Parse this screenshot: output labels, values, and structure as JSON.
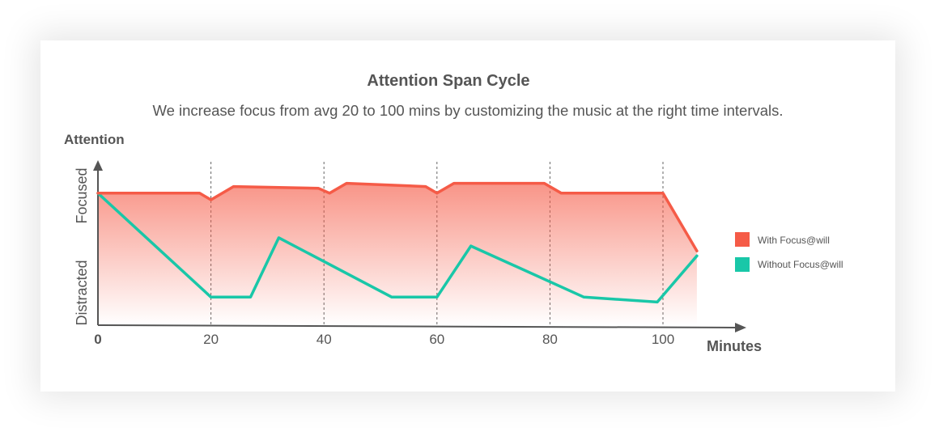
{
  "colors": {
    "with": "#f55b47",
    "without": "#19c7a8",
    "axis": "#555555",
    "text": "#555555"
  },
  "header": {
    "title": "Attention Span Cycle",
    "subtitle": "We increase focus from avg 20 to 100 mins by customizing the music at the right time intervals."
  },
  "chart_data": {
    "type": "line",
    "title": "Attention Span Cycle",
    "subtitle": "We increase focus from avg 20 to 100 mins by customizing the music at the right time intervals.",
    "ylabel": "Attention",
    "xlabel": "Minutes",
    "y_categories": [
      "Distracted",
      "Focused"
    ],
    "x_ticks": [
      "0",
      "20",
      "40",
      "60",
      "80",
      "100"
    ],
    "xlim": [
      0,
      115
    ],
    "ylim": [
      0,
      1
    ],
    "grid": "vertical dashed lines at 20, 40, 60, 80, 100",
    "legend_position": "right",
    "series": [
      {
        "name": "With Focus@will",
        "color": "#f55b47",
        "fill": "gradient",
        "points": [
          [
            0,
            0.8
          ],
          [
            18,
            0.8
          ],
          [
            20,
            0.76
          ],
          [
            24,
            0.84
          ],
          [
            39,
            0.83
          ],
          [
            41,
            0.8
          ],
          [
            44,
            0.86
          ],
          [
            58,
            0.84
          ],
          [
            60,
            0.8
          ],
          [
            63,
            0.86
          ],
          [
            79,
            0.86
          ],
          [
            82,
            0.8
          ],
          [
            100,
            0.8
          ],
          [
            106,
            0.45
          ]
        ]
      },
      {
        "name": "Without Focus@will",
        "color": "#19c7a8",
        "points": [
          [
            0,
            0.8
          ],
          [
            20,
            0.17
          ],
          [
            27,
            0.17
          ],
          [
            32,
            0.53
          ],
          [
            52,
            0.17
          ],
          [
            60,
            0.17
          ],
          [
            66,
            0.48
          ],
          [
            86,
            0.17
          ],
          [
            99,
            0.14
          ],
          [
            106,
            0.42
          ]
        ]
      }
    ]
  }
}
